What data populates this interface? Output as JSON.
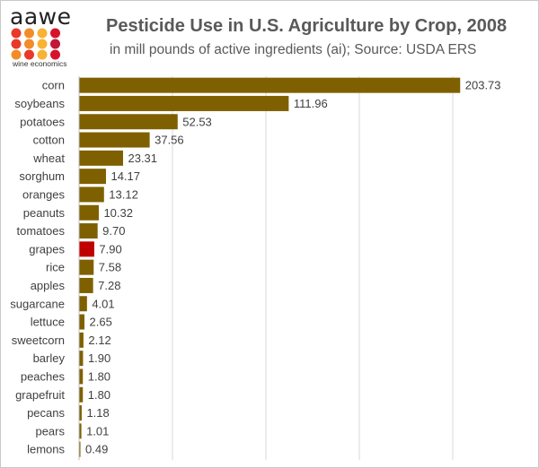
{
  "header": {
    "logo_text": "aawe",
    "logo_subtext": "wine economics",
    "logo_dot_colors": [
      "#e8392a",
      "#f28c28",
      "#f9b233",
      "#d7132c",
      "#e8392a",
      "#f28c28",
      "#f9b233",
      "#c1173a",
      "#f28c28",
      "#e8392a",
      "#f9b233",
      "#d7132c"
    ],
    "title": "Pesticide Use in U.S. Agriculture by Crop, 2008",
    "subtitle": "in mill pounds of active ingredients (ai); Source: USDA ERS"
  },
  "chart_data": {
    "type": "bar",
    "orientation": "horizontal",
    "title": "Pesticide Use in U.S. Agriculture by Crop, 2008",
    "subtitle": "in mill pounds of active ingredients (ai); Source: USDA ERS",
    "categories": [
      "corn",
      "soybeans",
      "potatoes",
      "cotton",
      "wheat",
      "sorghum",
      "oranges",
      "peanuts",
      "tomatoes",
      "grapes",
      "rice",
      "apples",
      "sugarcane",
      "lettuce",
      "sweetcorn",
      "barley",
      "peaches",
      "grapefruit",
      "pecans",
      "pears",
      "lemons"
    ],
    "values": [
      203.73,
      111.96,
      52.53,
      37.56,
      23.31,
      14.17,
      13.12,
      10.32,
      9.7,
      7.9,
      7.58,
      7.28,
      4.01,
      2.65,
      2.12,
      1.9,
      1.8,
      1.8,
      1.18,
      1.01,
      0.49
    ],
    "value_labels": [
      "203.73",
      "111.96",
      "52.53",
      "37.56",
      "23.31",
      "14.17",
      "13.12",
      "10.32",
      "9.70",
      "7.90",
      "7.58",
      "7.28",
      "4.01",
      "2.65",
      "2.12",
      "1.90",
      "1.80",
      "1.80",
      "1.18",
      "1.01",
      "0.49"
    ],
    "xlim": [
      0,
      250
    ],
    "x_gridlines": [
      50,
      100,
      150,
      200,
      250
    ],
    "grid": true,
    "bar_color": "#7f6000",
    "highlight_category": "grapes",
    "highlight_color": "#c00000",
    "xlabel": "",
    "ylabel": ""
  }
}
